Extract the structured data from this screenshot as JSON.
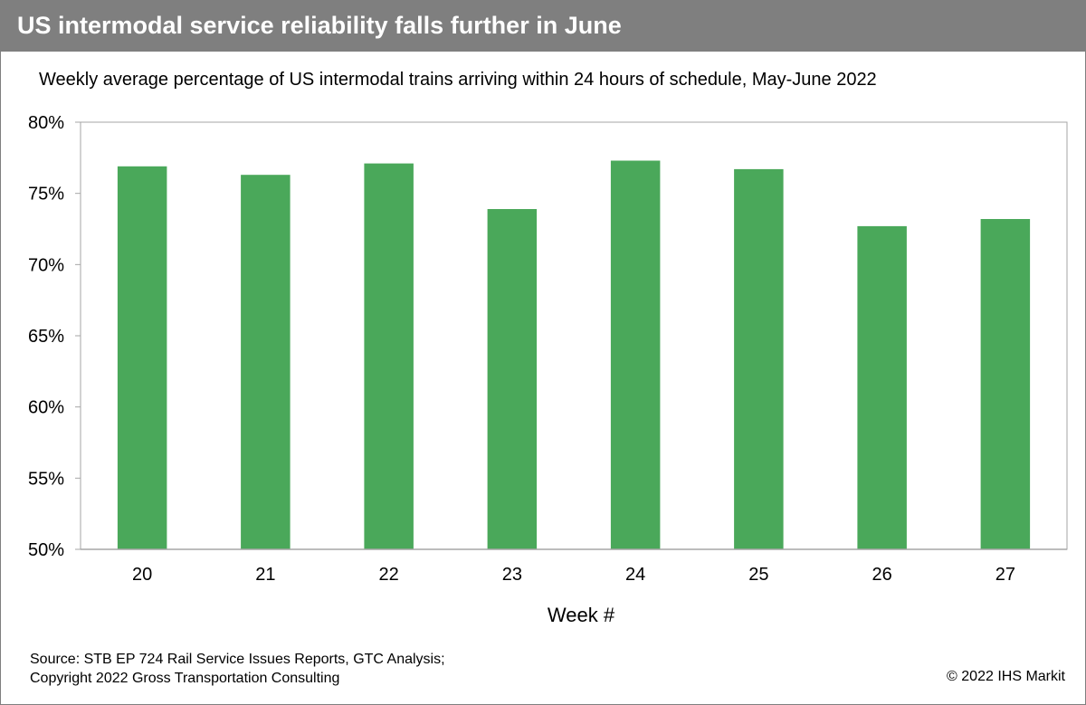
{
  "header": {
    "title": "US intermodal service reliability falls further in June"
  },
  "chart_data": {
    "type": "bar",
    "title": "US intermodal service reliability falls further in June",
    "subtitle": "Weekly average percentage of US intermodal trains arriving within 24 hours of schedule, May-June 2022",
    "categories": [
      "20",
      "21",
      "22",
      "23",
      "24",
      "25",
      "26",
      "27"
    ],
    "values": [
      76.9,
      76.3,
      77.1,
      73.9,
      77.3,
      76.7,
      72.7,
      73.2
    ],
    "xlabel": "Week #",
    "ylabel": "",
    "ylim": [
      50,
      80
    ],
    "yticks": [
      50,
      55,
      60,
      65,
      70,
      75,
      80
    ],
    "ytick_labels": [
      "50%",
      "55%",
      "60%",
      "65%",
      "70%",
      "75%",
      "80%"
    ],
    "grid": false,
    "legend": "none",
    "bar_color": "#4aa85a"
  },
  "footer": {
    "source_line1": "Source: STB EP 724 Rail Service Issues Reports, GTC Analysis;",
    "source_line2": "Copyright 2022 Gross Transportation Consulting",
    "copyright": "© 2022 IHS Markit"
  },
  "colors": {
    "title_bar": "#7f7f7f",
    "title_text": "#ffffff",
    "bar": "#4aa85a",
    "plot_border": "#a6a6a6"
  }
}
